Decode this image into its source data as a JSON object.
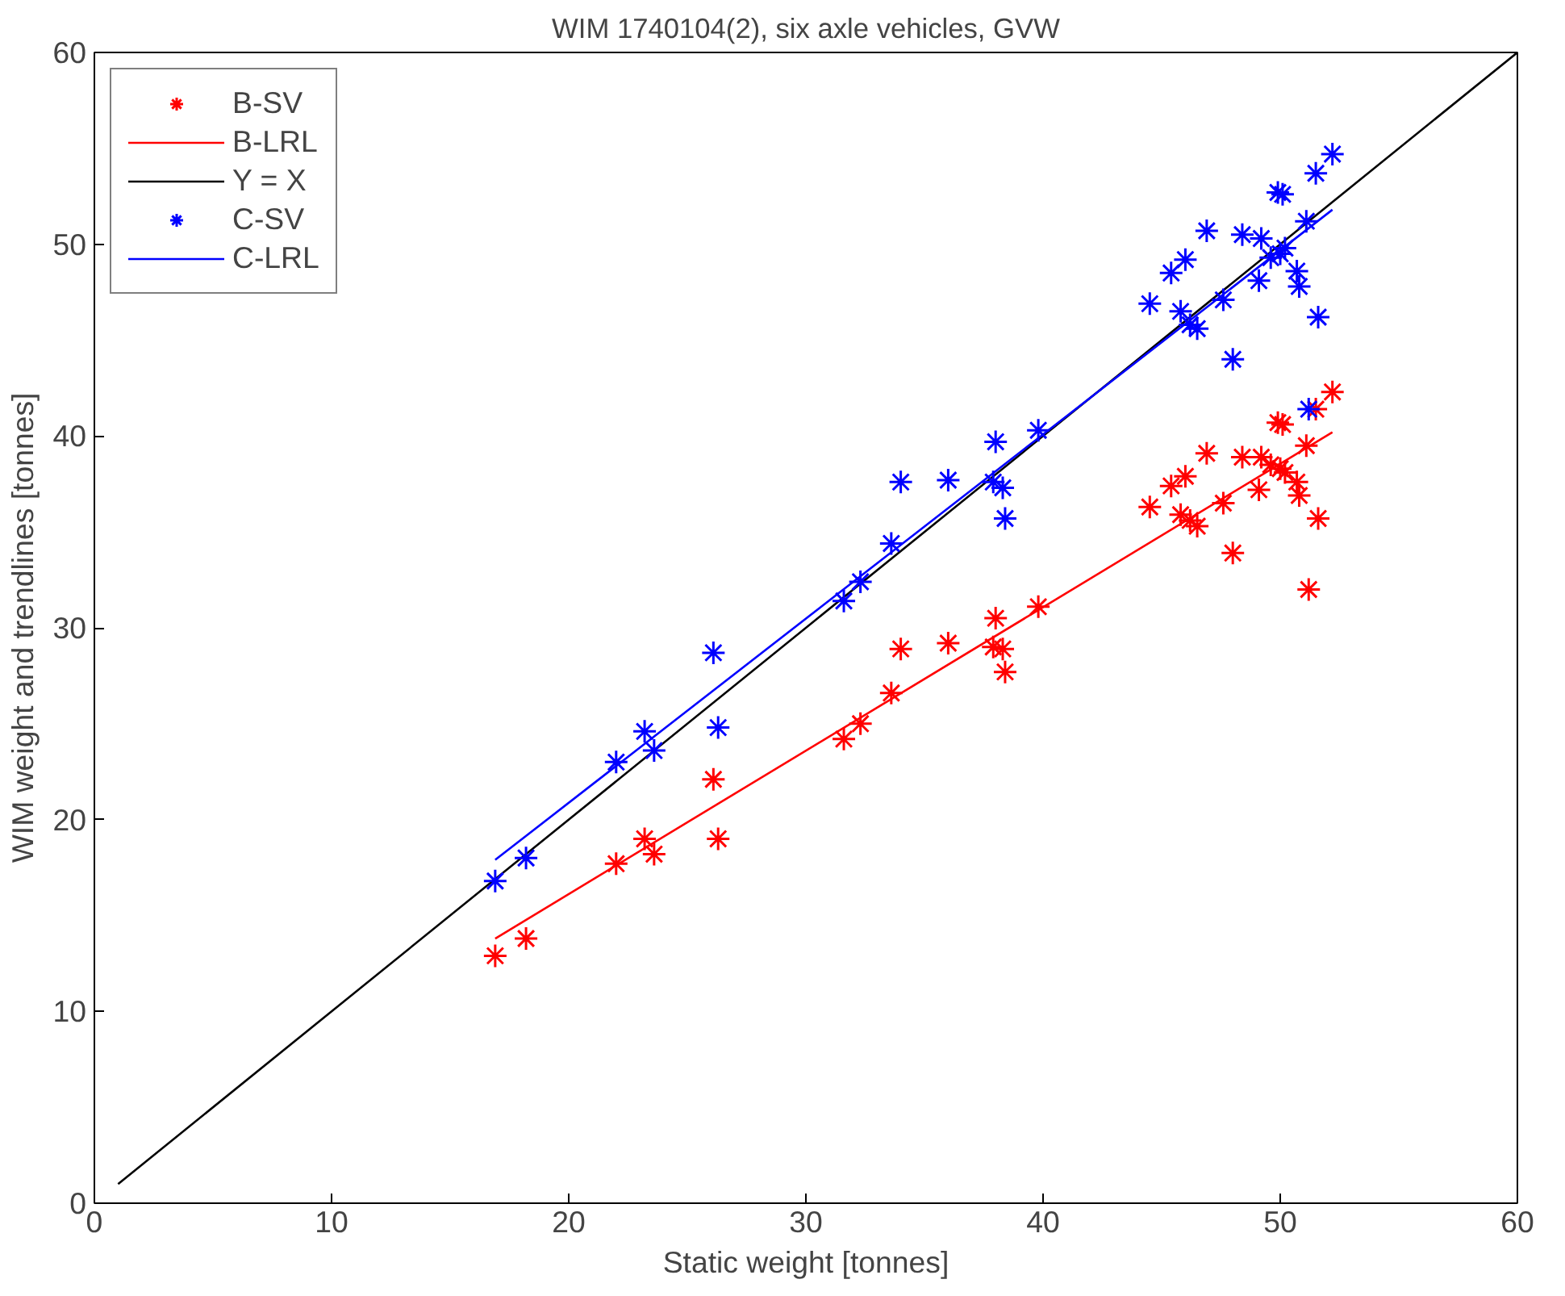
{
  "chart_data": {
    "type": "scatter",
    "title": "WIM 1740104(2), six axle vehicles, GVW",
    "xlabel": "Static weight [tonnes]",
    "ylabel": "WIM weight and trendlines [tonnes]",
    "xlim": [
      0,
      60
    ],
    "ylim": [
      0,
      60
    ],
    "xticks": [
      0,
      10,
      20,
      30,
      40,
      50,
      60
    ],
    "yticks": [
      0,
      10,
      20,
      30,
      40,
      50,
      60
    ],
    "grid": false,
    "legend": "top left",
    "series": [
      {
        "name": "B-SV",
        "marker": "cross",
        "color": "#ff0000",
        "x": [
          16.9,
          18.2,
          22.0,
          23.2,
          23.6,
          26.1,
          26.3,
          31.6,
          32.3,
          33.6,
          34.0,
          36.0,
          37.9,
          38.0,
          38.3,
          38.4,
          39.8,
          44.5,
          45.4,
          45.8,
          46.0,
          46.2,
          46.5,
          46.9,
          47.6,
          48.0,
          48.4,
          49.1,
          49.2,
          49.6,
          49.9,
          50.0,
          50.1,
          50.2,
          50.7,
          50.8,
          51.1,
          51.2,
          51.5,
          51.6,
          52.2
        ],
        "values": [
          12.9,
          13.8,
          17.7,
          19.0,
          18.2,
          22.1,
          19.0,
          24.2,
          25.0,
          26.6,
          28.9,
          29.2,
          29.0,
          30.5,
          28.9,
          27.7,
          31.1,
          36.3,
          37.4,
          35.9,
          37.9,
          35.6,
          35.3,
          39.1,
          36.5,
          33.9,
          38.9,
          37.2,
          38.9,
          38.5,
          40.7,
          38.3,
          40.6,
          38.1,
          37.6,
          36.9,
          39.5,
          32.0,
          41.4,
          35.7,
          42.3
        ]
      },
      {
        "name": "B-LRL",
        "type": "line",
        "line_style": "solid",
        "color": "#ff0000",
        "x": [
          16.9,
          52.2
        ],
        "values": [
          13.8,
          40.2
        ]
      },
      {
        "name": "Y = X",
        "type": "line",
        "line_style": "solid",
        "color": "#000000",
        "x": [
          1,
          60
        ],
        "values": [
          1,
          60
        ]
      },
      {
        "name": "C-SV",
        "marker": "cross",
        "color": "#0000ff",
        "x": [
          16.9,
          18.2,
          22.0,
          23.2,
          23.6,
          26.1,
          26.3,
          31.6,
          32.3,
          33.6,
          34.0,
          36.0,
          37.9,
          38.0,
          38.3,
          38.4,
          39.8,
          44.5,
          45.4,
          45.8,
          46.0,
          46.2,
          46.5,
          46.9,
          47.6,
          48.0,
          48.4,
          49.1,
          49.2,
          49.6,
          49.9,
          50.0,
          50.1,
          50.2,
          50.7,
          50.8,
          51.1,
          51.2,
          51.5,
          51.6,
          52.2
        ],
        "values": [
          16.8,
          18.0,
          23.0,
          24.6,
          23.6,
          28.7,
          24.8,
          31.4,
          32.4,
          34.4,
          37.6,
          37.7,
          37.6,
          39.7,
          37.3,
          35.7,
          40.3,
          46.9,
          48.5,
          46.5,
          49.2,
          45.8,
          45.6,
          50.7,
          47.1,
          44.0,
          50.5,
          48.1,
          50.3,
          49.3,
          52.7,
          49.5,
          52.6,
          49.8,
          48.6,
          47.8,
          51.2,
          41.4,
          53.7,
          46.2,
          54.7
        ]
      },
      {
        "name": "C-LRL",
        "type": "line",
        "line_style": "solid",
        "color": "#0000ff",
        "x": [
          16.9,
          52.2
        ],
        "values": [
          17.9,
          51.8
        ]
      }
    ]
  }
}
